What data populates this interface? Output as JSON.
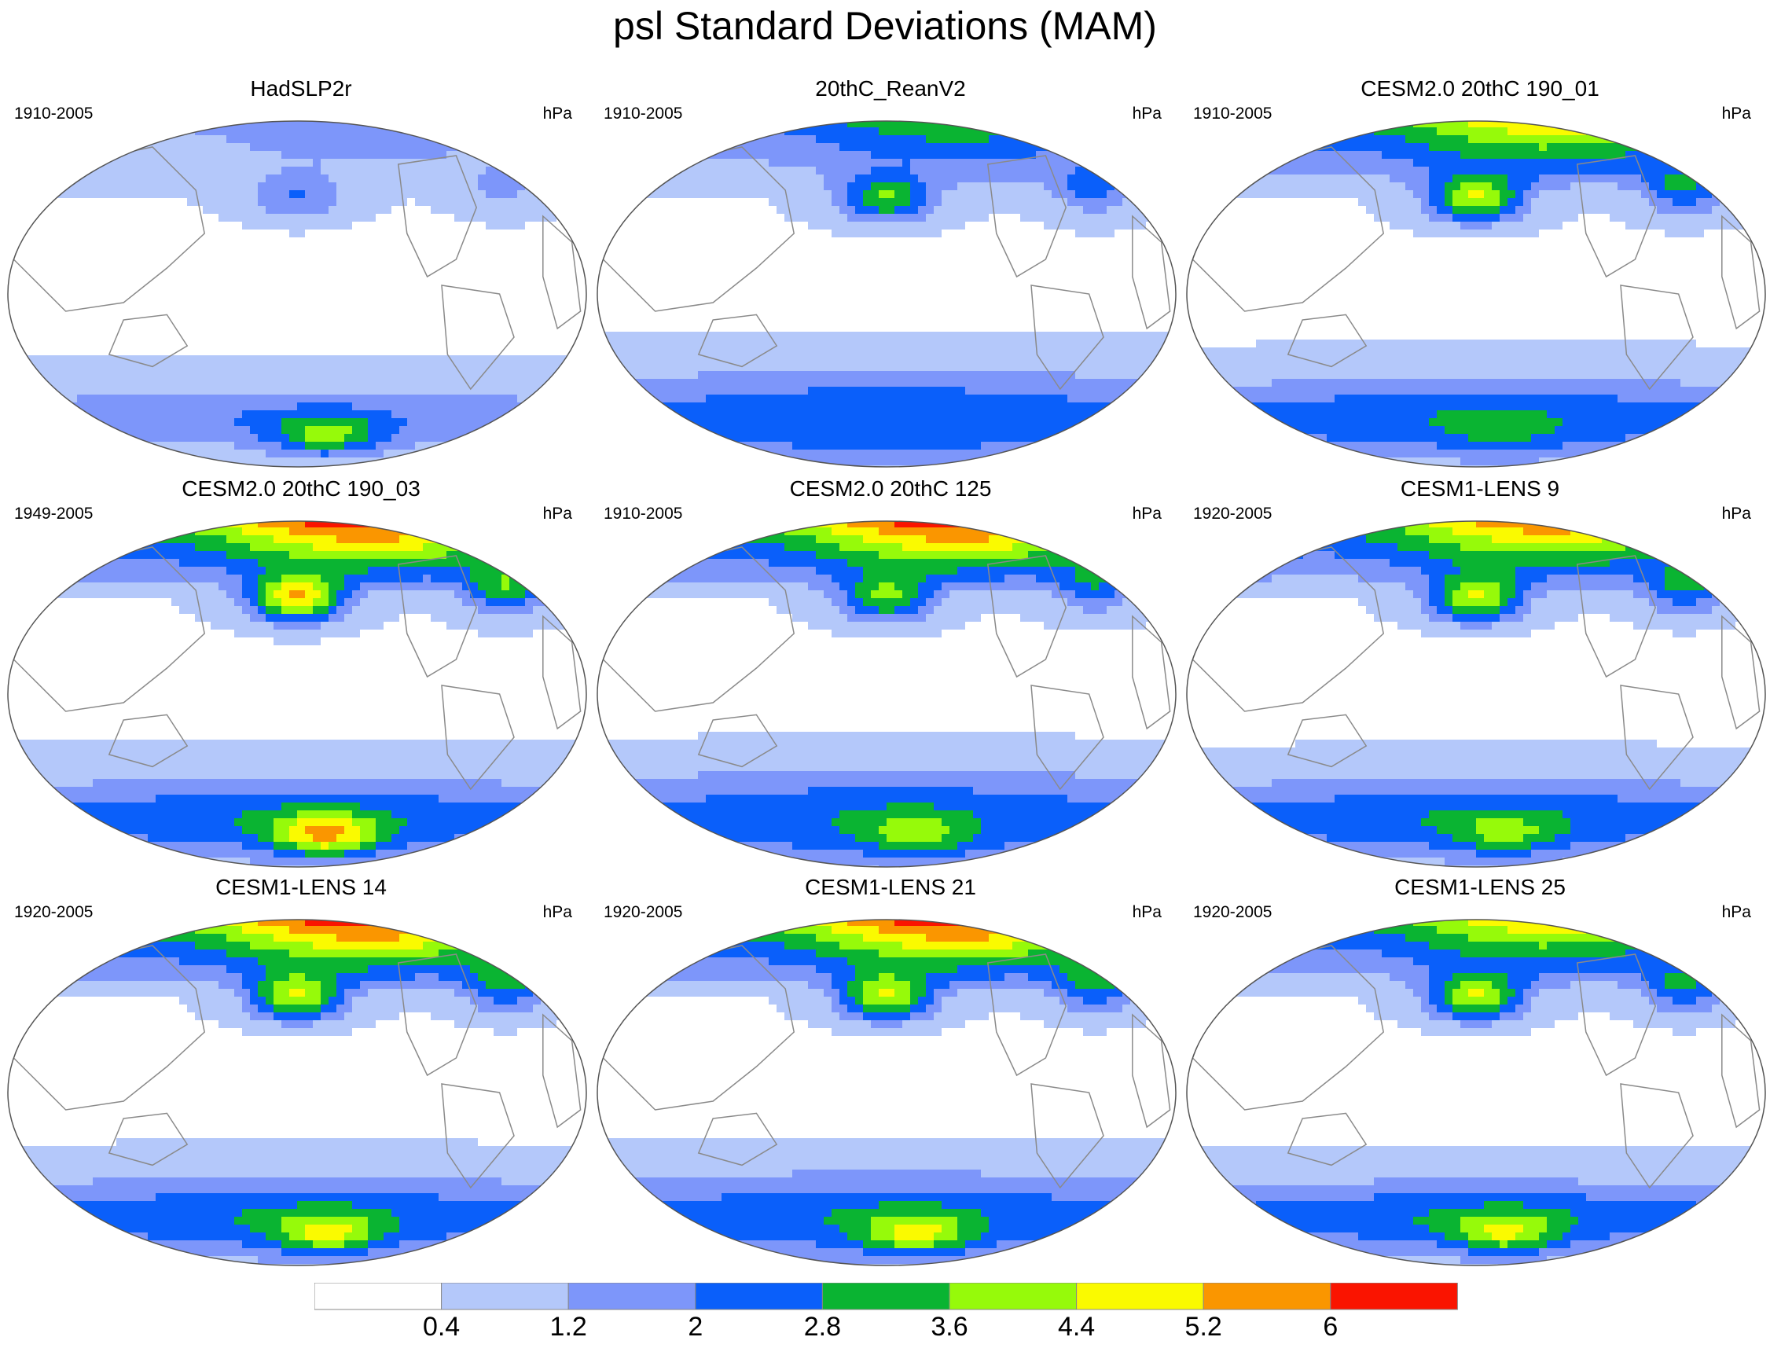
{
  "title": "psl Standard Deviations (MAM)",
  "colors": {
    "levels": [
      "#ffffff",
      "#b4c8fa",
      "#7d96fa",
      "#0a5ffa",
      "#0ab432",
      "#96fa0a",
      "#fafa00",
      "#fa9600",
      "#fa1400"
    ],
    "coast": "#8a8a8a",
    "outline": "#555555"
  },
  "colorbar": {
    "labels": [
      "0.4",
      "1.2",
      "2",
      "2.8",
      "3.6",
      "4.4",
      "5.2",
      "6"
    ]
  },
  "panels": [
    {
      "title": "HadSLP2r",
      "period": "1910-2005",
      "units": "hPa",
      "arctic_peak": 2,
      "nh_blob": 2,
      "sh_peak": 5,
      "sh_base": 2,
      "sh_spread": 0.6,
      "tropical_zero": 0.9
    },
    {
      "title": "20thC_ReanV2",
      "period": "1910-2005",
      "units": "hPa",
      "arctic_peak": 4,
      "nh_blob": 4,
      "sh_peak": 3,
      "sh_base": 3,
      "sh_spread": 1.0,
      "tropical_zero": 0.15
    },
    {
      "title": "CESM2.0 20thC 190_01",
      "period": "1910-2005",
      "units": "hPa",
      "arctic_peak": 6,
      "nh_blob": 5,
      "sh_peak": 4,
      "sh_base": 3,
      "sh_spread": 0.8,
      "tropical_zero": 0.25
    },
    {
      "title": "CESM2.0 20thC 190_03",
      "period": "1949-2005",
      "units": "hPa",
      "arctic_peak": 8,
      "nh_blob": 6,
      "sh_peak": 7,
      "sh_base": 3,
      "sh_spread": 0.8,
      "tropical_zero": 0.2
    },
    {
      "title": "CESM2.0 20thC 125",
      "period": "1910-2005",
      "units": "hPa",
      "arctic_peak": 8,
      "nh_blob": 4,
      "sh_peak": 5,
      "sh_base": 3,
      "sh_spread": 1.0,
      "tropical_zero": 0.25
    },
    {
      "title": "CESM1-LENS 9",
      "period": "1920-2005",
      "units": "hPa",
      "arctic_peak": 7,
      "nh_blob": 5,
      "sh_peak": 5,
      "sh_base": 3,
      "sh_spread": 0.8,
      "tropical_zero": 0.3
    },
    {
      "title": "CESM1-LENS 14",
      "period": "1920-2005",
      "units": "hPa",
      "arctic_peak": 8,
      "nh_blob": 5,
      "sh_peak": 6,
      "sh_base": 3,
      "sh_spread": 0.8,
      "tropical_zero": 0.3
    },
    {
      "title": "CESM1-LENS 21",
      "period": "1920-2005",
      "units": "hPa",
      "arctic_peak": 8,
      "nh_blob": 5,
      "sh_peak": 6,
      "sh_base": 3,
      "sh_spread": 0.9,
      "tropical_zero": 0.3
    },
    {
      "title": "CESM1-LENS 25",
      "period": "1920-2005",
      "units": "hPa",
      "arctic_peak": 6,
      "nh_blob": 5,
      "sh_peak": 6,
      "sh_base": 3,
      "sh_spread": 0.7,
      "tropical_zero": 0.3
    }
  ]
}
